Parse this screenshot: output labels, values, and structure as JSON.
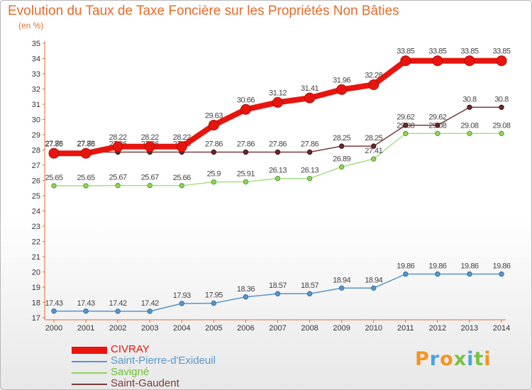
{
  "header": {
    "title": "Evolution du Taux de Taxe Foncière sur les Propriétés Non Bâties",
    "unit": "(en %)"
  },
  "logo": {
    "text": "Proxiti",
    "colors": [
      "#f7941d",
      "#4aa3df",
      "#f7941d",
      "#7ac143",
      "#4aa3df",
      "#7ac143",
      "#f7941d"
    ]
  },
  "chart_data": {
    "type": "line",
    "title": "Evolution du Taux de Taxe Foncière sur les Propriétés Non Bâties",
    "ylabel": "(en %)",
    "x": [
      "2000",
      "2001",
      "2002",
      "2003",
      "2004",
      "2005",
      "2006",
      "2007",
      "2008",
      "2009",
      "2010",
      "2011",
      "2012",
      "2013",
      "2014"
    ],
    "ylim": [
      17,
      35
    ],
    "yticks": [
      17,
      18,
      19,
      20,
      21,
      22,
      23,
      24,
      25,
      26,
      27,
      28,
      29,
      30,
      31,
      32,
      33,
      34,
      35
    ],
    "grid": false,
    "legend_position": "bottom-left",
    "series": [
      {
        "name": "CIVRAY",
        "color": "#e8150e",
        "values": [
          27.78,
          27.78,
          28.22,
          28.22,
          28.22,
          29.63,
          30.66,
          31.12,
          31.41,
          31.96,
          32.28,
          33.85,
          33.85,
          33.85,
          33.85
        ]
      },
      {
        "name": "Saint-Pierre-d'Exideuil",
        "color": "#5b95c9",
        "values": [
          17.43,
          17.43,
          17.42,
          17.42,
          17.93,
          17.95,
          18.36,
          18.57,
          18.57,
          18.94,
          18.94,
          19.86,
          19.86,
          19.86,
          19.86
        ]
      },
      {
        "name": "Savigné",
        "color": "#8fd35f",
        "values": [
          25.65,
          25.65,
          25.67,
          25.67,
          25.66,
          25.9,
          25.91,
          26.13,
          26.13,
          26.89,
          27.41,
          29.08,
          29.08,
          29.08,
          29.08
        ]
      },
      {
        "name": "Saint-Gaudent",
        "color": "#7a3b3b",
        "values": [
          27.86,
          27.86,
          27.86,
          27.86,
          27.86,
          27.86,
          27.86,
          27.86,
          27.86,
          28.25,
          28.25,
          29.62,
          29.62,
          30.8,
          30.8
        ]
      }
    ]
  }
}
